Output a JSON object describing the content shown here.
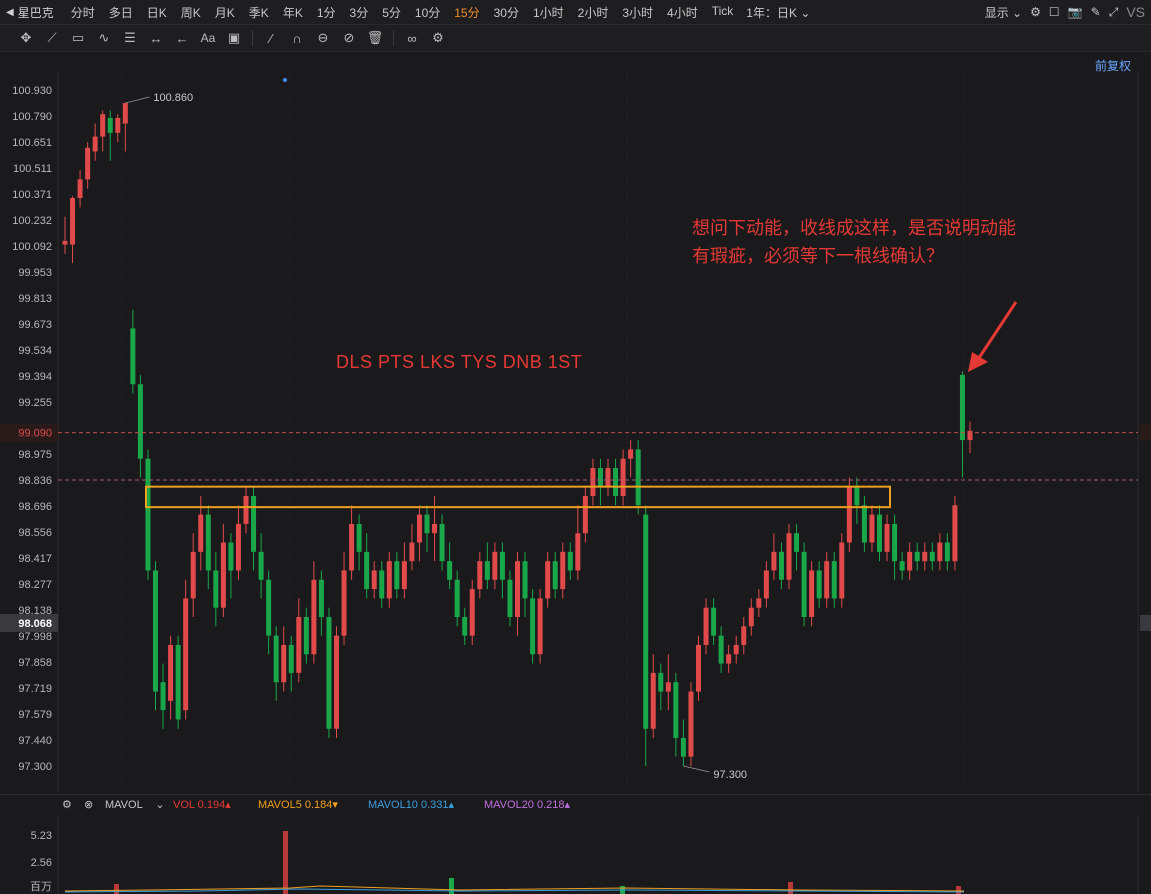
{
  "toolbar": {
    "symbol": "星巴克",
    "timeframes": [
      "分时",
      "多日",
      "日K",
      "周K",
      "月K",
      "季K",
      "年K",
      "1分",
      "3分",
      "5分",
      "10分",
      "15分",
      "30分",
      "1小时",
      "2小时",
      "3小时",
      "4小时",
      "Tick"
    ],
    "active_timeframe": "15分",
    "range_label": "1年：日K",
    "display_label": "显示",
    "vs_label": "VS"
  },
  "chart": {
    "adjust_label": "前复权",
    "price_ticks": [
      "100.930",
      "100.790",
      "100.651",
      "100.511",
      "100.371",
      "100.232",
      "100.092",
      "99.953",
      "99.813",
      "99.673",
      "99.534",
      "99.394",
      "99.255",
      "99.090",
      "98.975",
      "98.836",
      "98.696",
      "98.556",
      "98.417",
      "98.277",
      "98.138",
      "98.068",
      "97.998",
      "97.858",
      "97.719",
      "97.579",
      "97.440",
      "97.300"
    ],
    "current_price": "99.090",
    "crosshair_price": "98.068",
    "high_label": "100.860",
    "low_label": "97.300",
    "annotation_text": "想问下动能，收线成这样，是否说明动能有瑕疵，必须等下一根线确认？",
    "stamp_text": "DLS PTS LKS TYS DNB 1ST",
    "colors": {
      "up": "#e04a4a",
      "down": "#19a74a",
      "highlight_box": "#f0a020",
      "annotation": "#e53935"
    }
  },
  "volume": {
    "indicator": "MAVOL",
    "vol_label": "VOL",
    "vol_value": "0.194",
    "ma5_label": "MAVOL5",
    "ma5_value": "0.184",
    "ma10_label": "MAVOL10",
    "ma10_value": "0.331",
    "ma20_label": "MAVOL20",
    "ma20_value": "0.218",
    "ticks": [
      "5.23",
      "2.56",
      "百万"
    ]
  },
  "chart_data": {
    "type": "candlestick",
    "title": "",
    "xlabel": "",
    "ylabel": "",
    "ylim": [
      97.2,
      101.05
    ],
    "candles": [
      [
        100.1,
        100.12,
        100.05,
        100.25
      ],
      [
        100.1,
        100.35,
        100.0,
        100.36
      ],
      [
        100.35,
        100.45,
        100.3,
        100.5
      ],
      [
        100.45,
        100.62,
        100.4,
        100.65
      ],
      [
        100.6,
        100.68,
        100.55,
        100.75
      ],
      [
        100.68,
        100.8,
        100.6,
        100.82
      ],
      [
        100.78,
        100.7,
        100.55,
        100.82
      ],
      [
        100.7,
        100.78,
        100.65,
        100.8
      ],
      [
        100.75,
        100.86,
        100.6,
        100.86
      ],
      [
        99.65,
        99.35,
        99.3,
        99.75
      ],
      [
        99.35,
        98.95,
        98.85,
        99.4
      ],
      [
        98.95,
        98.35,
        98.3,
        99.0
      ],
      [
        98.35,
        97.7,
        97.6,
        98.4
      ],
      [
        97.75,
        97.6,
        97.5,
        97.85
      ],
      [
        97.65,
        97.95,
        97.55,
        98.0
      ],
      [
        97.95,
        97.55,
        97.5,
        98.0
      ],
      [
        97.6,
        98.2,
        97.55,
        98.3
      ],
      [
        98.2,
        98.45,
        98.1,
        98.55
      ],
      [
        98.45,
        98.65,
        98.35,
        98.75
      ],
      [
        98.65,
        98.35,
        98.25,
        98.7
      ],
      [
        98.35,
        98.15,
        98.05,
        98.45
      ],
      [
        98.15,
        98.5,
        98.1,
        98.6
      ],
      [
        98.5,
        98.35,
        98.2,
        98.55
      ],
      [
        98.35,
        98.6,
        98.3,
        98.7
      ],
      [
        98.6,
        98.75,
        98.55,
        98.8
      ],
      [
        98.75,
        98.45,
        98.35,
        98.8
      ],
      [
        98.45,
        98.3,
        98.2,
        98.55
      ],
      [
        98.3,
        98.0,
        97.9,
        98.35
      ],
      [
        98.0,
        97.75,
        97.65,
        98.05
      ],
      [
        97.75,
        97.95,
        97.7,
        98.05
      ],
      [
        97.95,
        97.8,
        97.7,
        98.0
      ],
      [
        97.8,
        98.1,
        97.75,
        98.2
      ],
      [
        98.1,
        97.9,
        97.85,
        98.15
      ],
      [
        97.9,
        98.3,
        97.85,
        98.4
      ],
      [
        98.3,
        98.1,
        98.0,
        98.35
      ],
      [
        98.1,
        97.5,
        97.45,
        98.15
      ],
      [
        97.5,
        98.0,
        97.45,
        98.05
      ],
      [
        98.0,
        98.35,
        97.95,
        98.45
      ],
      [
        98.35,
        98.6,
        98.3,
        98.7
      ],
      [
        98.6,
        98.45,
        98.35,
        98.65
      ],
      [
        98.45,
        98.25,
        98.2,
        98.55
      ],
      [
        98.25,
        98.35,
        98.2,
        98.4
      ],
      [
        98.35,
        98.2,
        98.15,
        98.4
      ],
      [
        98.2,
        98.4,
        98.15,
        98.45
      ],
      [
        98.4,
        98.25,
        98.2,
        98.45
      ],
      [
        98.25,
        98.4,
        98.2,
        98.5
      ],
      [
        98.4,
        98.5,
        98.35,
        98.6
      ],
      [
        98.5,
        98.65,
        98.4,
        98.7
      ],
      [
        98.65,
        98.55,
        98.45,
        98.7
      ],
      [
        98.55,
        98.6,
        98.4,
        98.75
      ],
      [
        98.6,
        98.4,
        98.35,
        98.65
      ],
      [
        98.4,
        98.3,
        98.25,
        98.5
      ],
      [
        98.3,
        98.1,
        98.05,
        98.35
      ],
      [
        98.1,
        98.0,
        97.95,
        98.15
      ],
      [
        98.0,
        98.25,
        97.95,
        98.3
      ],
      [
        98.25,
        98.4,
        98.2,
        98.45
      ],
      [
        98.4,
        98.3,
        98.25,
        98.5
      ],
      [
        98.3,
        98.45,
        98.25,
        98.5
      ],
      [
        98.45,
        98.3,
        98.2,
        98.5
      ],
      [
        98.3,
        98.1,
        98.05,
        98.35
      ],
      [
        98.1,
        98.4,
        98.0,
        98.45
      ],
      [
        98.4,
        98.2,
        98.1,
        98.45
      ],
      [
        98.2,
        97.9,
        97.85,
        98.25
      ],
      [
        97.9,
        98.2,
        97.85,
        98.25
      ],
      [
        98.2,
        98.4,
        98.15,
        98.45
      ],
      [
        98.4,
        98.25,
        98.2,
        98.45
      ],
      [
        98.25,
        98.45,
        98.2,
        98.5
      ],
      [
        98.45,
        98.35,
        98.3,
        98.5
      ],
      [
        98.35,
        98.55,
        98.3,
        98.7
      ],
      [
        98.55,
        98.75,
        98.5,
        98.8
      ],
      [
        98.75,
        98.9,
        98.7,
        98.95
      ],
      [
        98.9,
        98.8,
        98.7,
        98.95
      ],
      [
        98.8,
        98.9,
        98.75,
        98.95
      ],
      [
        98.9,
        98.75,
        98.7,
        98.95
      ],
      [
        98.75,
        98.95,
        98.7,
        99.0
      ],
      [
        98.95,
        99.0,
        98.85,
        99.05
      ],
      [
        99.0,
        98.7,
        98.65,
        99.05
      ],
      [
        98.65,
        97.5,
        97.3,
        98.7
      ],
      [
        97.5,
        97.8,
        97.45,
        97.9
      ],
      [
        97.8,
        97.7,
        97.6,
        97.85
      ],
      [
        97.7,
        97.75,
        97.6,
        97.9
      ],
      [
        97.75,
        97.45,
        97.35,
        97.8
      ],
      [
        97.45,
        97.35,
        97.3,
        97.55
      ],
      [
        97.35,
        97.7,
        97.3,
        97.75
      ],
      [
        97.7,
        97.95,
        97.65,
        98.0
      ],
      [
        97.95,
        98.15,
        97.9,
        98.2
      ],
      [
        98.15,
        98.0,
        97.95,
        98.2
      ],
      [
        98.0,
        97.85,
        97.8,
        98.05
      ],
      [
        97.85,
        97.9,
        97.8,
        97.95
      ],
      [
        97.9,
        97.95,
        97.85,
        98.0
      ],
      [
        97.95,
        98.05,
        97.9,
        98.1
      ],
      [
        98.05,
        98.15,
        98.0,
        98.2
      ],
      [
        98.15,
        98.2,
        98.1,
        98.25
      ],
      [
        98.2,
        98.35,
        98.15,
        98.4
      ],
      [
        98.35,
        98.45,
        98.3,
        98.55
      ],
      [
        98.45,
        98.3,
        98.25,
        98.5
      ],
      [
        98.3,
        98.55,
        98.25,
        98.6
      ],
      [
        98.55,
        98.45,
        98.35,
        98.6
      ],
      [
        98.45,
        98.1,
        98.05,
        98.5
      ],
      [
        98.1,
        98.35,
        98.05,
        98.4
      ],
      [
        98.35,
        98.2,
        98.15,
        98.4
      ],
      [
        98.2,
        98.4,
        98.15,
        98.45
      ],
      [
        98.4,
        98.2,
        98.15,
        98.45
      ],
      [
        98.2,
        98.5,
        98.15,
        98.55
      ],
      [
        98.5,
        98.8,
        98.45,
        98.85
      ],
      [
        98.8,
        98.7,
        98.6,
        98.85
      ],
      [
        98.7,
        98.5,
        98.45,
        98.75
      ],
      [
        98.5,
        98.65,
        98.45,
        98.7
      ],
      [
        98.65,
        98.45,
        98.4,
        98.7
      ],
      [
        98.45,
        98.6,
        98.4,
        98.65
      ],
      [
        98.6,
        98.4,
        98.3,
        98.65
      ],
      [
        98.4,
        98.35,
        98.3,
        98.45
      ],
      [
        98.35,
        98.45,
        98.3,
        98.5
      ],
      [
        98.45,
        98.4,
        98.35,
        98.5
      ],
      [
        98.4,
        98.45,
        98.35,
        98.5
      ],
      [
        98.45,
        98.4,
        98.35,
        98.5
      ],
      [
        98.4,
        98.5,
        98.35,
        98.55
      ],
      [
        98.5,
        98.4,
        98.35,
        98.55
      ],
      [
        98.4,
        98.7,
        98.35,
        98.75
      ],
      [
        99.4,
        99.05,
        98.85,
        99.42
      ],
      [
        99.05,
        99.1,
        98.98,
        99.15
      ]
    ]
  }
}
